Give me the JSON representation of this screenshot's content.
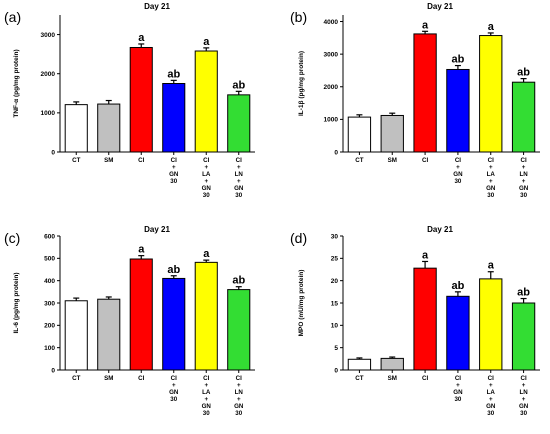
{
  "chart_data": [
    {
      "type": "bar",
      "panel_label": "(a)",
      "title": "Day 21",
      "ylabel": "TNF-α (pg/mg protein)",
      "ylim": [
        0,
        3500
      ],
      "yticks": [
        0,
        1000,
        2000,
        3000
      ],
      "categories": [
        "CT",
        "SM",
        "CI",
        "CI + GN 30",
        "CI + LA + GN 30",
        "CI + LN + GN 30"
      ],
      "category_lines": [
        [
          "CT"
        ],
        [
          "SM"
        ],
        [
          "CI"
        ],
        [
          "CI",
          "+",
          "GN",
          "30"
        ],
        [
          "CI",
          "+",
          "LA",
          "+",
          "GN",
          "30"
        ],
        [
          "CI",
          "+",
          "LN",
          "+",
          "GN",
          "30"
        ]
      ],
      "values": [
        1210,
        1225,
        2670,
        1750,
        2580,
        1460
      ],
      "errors": [
        70,
        90,
        90,
        80,
        80,
        90
      ],
      "significance": [
        "",
        "",
        "a",
        "ab",
        "a",
        "ab"
      ],
      "colors": [
        "#ffffff",
        "#c0c0c0",
        "#ff0000",
        "#0000ff",
        "#ffff00",
        "#33dd33"
      ]
    },
    {
      "type": "bar",
      "panel_label": "(b)",
      "title": "Day 21",
      "ylabel": "IL-1β (pg/mg protein)",
      "ylim": [
        0,
        4200
      ],
      "yticks": [
        0,
        1000,
        2000,
        3000,
        4000
      ],
      "categories": [
        "CT",
        "SM",
        "CI",
        "CI + GN 30",
        "CI + LA + GN 30",
        "CI + LN + GN 30"
      ],
      "category_lines": [
        [
          "CT"
        ],
        [
          "SM"
        ],
        [
          "CI"
        ],
        [
          "CI",
          "+",
          "GN",
          "30"
        ],
        [
          "CI",
          "+",
          "LA",
          "+",
          "GN",
          "30"
        ],
        [
          "CI",
          "+",
          "LN",
          "+",
          "GN",
          "30"
        ]
      ],
      "values": [
        1070,
        1120,
        3620,
        2530,
        3570,
        2140
      ],
      "errors": [
        70,
        70,
        80,
        120,
        80,
        110
      ],
      "significance": [
        "",
        "",
        "a",
        "ab",
        "a",
        "ab"
      ],
      "colors": [
        "#ffffff",
        "#c0c0c0",
        "#ff0000",
        "#0000ff",
        "#ffff00",
        "#33dd33"
      ]
    },
    {
      "type": "bar",
      "panel_label": "(c)",
      "title": "Day 21",
      "ylabel": "IL-6 (pg/mg protein)",
      "ylim": [
        0,
        600
      ],
      "yticks": [
        0,
        100,
        200,
        300,
        400,
        500,
        600
      ],
      "categories": [
        "CT",
        "SM",
        "CI",
        "CI + GN 30",
        "CI + LA + GN 30",
        "CI + LN + GN 30"
      ],
      "category_lines": [
        [
          "CT"
        ],
        [
          "SM"
        ],
        [
          "CI"
        ],
        [
          "CI",
          "+",
          "GN",
          "30"
        ],
        [
          "CI",
          "+",
          "LA",
          "+",
          "GN",
          "30"
        ],
        [
          "CI",
          "+",
          "LN",
          "+",
          "GN",
          "30"
        ]
      ],
      "values": [
        310,
        317,
        497,
        410,
        482,
        360
      ],
      "errors": [
        12,
        10,
        15,
        12,
        10,
        13
      ],
      "significance": [
        "",
        "",
        "a",
        "ab",
        "a",
        "ab"
      ],
      "colors": [
        "#ffffff",
        "#c0c0c0",
        "#ff0000",
        "#0000ff",
        "#ffff00",
        "#33dd33"
      ]
    },
    {
      "type": "bar",
      "panel_label": "(d)",
      "title": "Day 21",
      "ylabel": "MPO (mU/mg protein)",
      "ylim": [
        0,
        30
      ],
      "yticks": [
        0,
        5,
        10,
        15,
        20,
        25,
        30
      ],
      "categories": [
        "CT",
        "SM",
        "CI",
        "CI + GN 30",
        "CI + LA + GN 30",
        "CI + LN + GN 30"
      ],
      "category_lines": [
        [
          "CT"
        ],
        [
          "SM"
        ],
        [
          "CI"
        ],
        [
          "CI",
          "+",
          "GN",
          "30"
        ],
        [
          "CI",
          "+",
          "LA",
          "+",
          "GN",
          "30"
        ],
        [
          "CI",
          "+",
          "LN",
          "+",
          "GN",
          "30"
        ]
      ],
      "values": [
        2.4,
        2.6,
        22.8,
        16.5,
        20.4,
        15.0
      ],
      "errors": [
        0.3,
        0.3,
        1.5,
        1.0,
        1.6,
        1.0
      ],
      "significance": [
        "",
        "",
        "a",
        "ab",
        "a",
        "ab"
      ],
      "colors": [
        "#ffffff",
        "#c0c0c0",
        "#ff0000",
        "#0000ff",
        "#ffff00",
        "#33dd33"
      ]
    }
  ]
}
